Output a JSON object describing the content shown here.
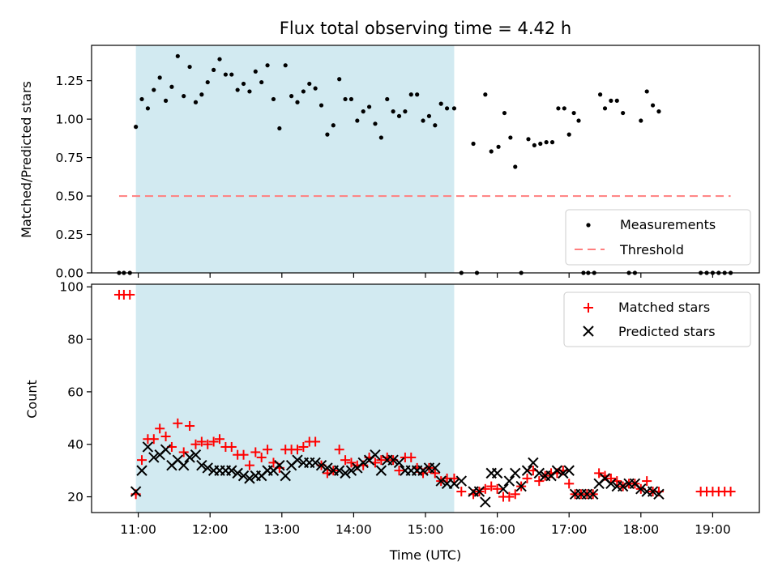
{
  "chart_data": [
    {
      "type": "scatter",
      "title": "Flux total observing time = 4.42 h",
      "xlabel": "",
      "ylabel": "Matched/Predicted stars",
      "xlim": [
        10.35,
        19.65
      ],
      "ylim": [
        0,
        1.48
      ],
      "yticks": [
        0.0,
        0.25,
        0.5,
        0.75,
        1.0,
        1.25
      ],
      "ytick_labels": [
        "0.00",
        "0.25",
        "0.50",
        "0.75",
        "1.00",
        "1.25"
      ],
      "observing_window": {
        "start": "10:58",
        "end": "15:24",
        "color": "#add8e6"
      },
      "legend": {
        "placement": "lower right",
        "entries": [
          "Measurements",
          "Threshold"
        ]
      },
      "threshold": {
        "name": "Threshold",
        "value": 0.5,
        "from": "10:44",
        "to": "19:15",
        "color": "#ff7f7f",
        "style": "dashed"
      },
      "series": [
        {
          "name": "Measurements",
          "color": "#000000",
          "marker": "dot",
          "x": [
            "10:44",
            "10:48",
            "10:53",
            "10:58",
            "11:03",
            "11:08",
            "11:13",
            "11:18",
            "11:23",
            "11:28",
            "11:33",
            "11:38",
            "11:43",
            "11:48",
            "11:53",
            "11:58",
            "12:03",
            "12:08",
            "12:13",
            "12:18",
            "12:23",
            "12:28",
            "12:33",
            "12:38",
            "12:43",
            "12:48",
            "12:53",
            "12:58",
            "13:03",
            "13:08",
            "13:13",
            "13:18",
            "13:23",
            "13:28",
            "13:33",
            "13:38",
            "13:43",
            "13:48",
            "13:53",
            "13:58",
            "14:03",
            "14:08",
            "14:13",
            "14:18",
            "14:23",
            "14:28",
            "14:33",
            "14:38",
            "14:43",
            "14:48",
            "14:53",
            "14:58",
            "15:03",
            "15:08",
            "15:13",
            "15:18",
            "15:24",
            "15:30",
            "15:40",
            "15:43",
            "15:50",
            "15:55",
            "16:01",
            "16:06",
            "16:11",
            "16:15",
            "16:20",
            "16:26",
            "16:31",
            "16:36",
            "16:41",
            "16:46",
            "16:51",
            "16:56",
            "17:00",
            "17:04",
            "17:08",
            "17:12",
            "17:16",
            "17:21",
            "17:26",
            "17:30",
            "17:35",
            "17:40",
            "17:45",
            "17:50",
            "17:55",
            "18:00",
            "18:05",
            "18:10",
            "18:15",
            "18:50",
            "18:55",
            "19:00",
            "19:05",
            "19:10",
            "19:15"
          ],
          "y": [
            0,
            0,
            0,
            0.95,
            1.13,
            1.07,
            1.19,
            1.27,
            1.12,
            1.21,
            1.41,
            1.15,
            1.34,
            1.11,
            1.16,
            1.24,
            1.32,
            1.39,
            1.29,
            1.29,
            1.19,
            1.23,
            1.18,
            1.31,
            1.24,
            1.35,
            1.13,
            0.94,
            1.35,
            1.15,
            1.11,
            1.18,
            1.23,
            1.2,
            1.09,
            0.9,
            0.96,
            1.26,
            1.13,
            1.13,
            0.99,
            1.05,
            1.08,
            0.97,
            0.88,
            1.13,
            1.05,
            1.02,
            1.05,
            1.16,
            1.16,
            0.99,
            1.02,
            0.96,
            1.1,
            1.07,
            1.07,
            0,
            0.84,
            0,
            1.16,
            0.79,
            0.82,
            1.04,
            0.88,
            0.69,
            0,
            0.87,
            0.83,
            0.84,
            0.85,
            0.85,
            1.07,
            1.07,
            0.9,
            1.04,
            0.99,
            0,
            0,
            0,
            1.16,
            1.07,
            1.12,
            1.12,
            1.04,
            0,
            0,
            0.99,
            1.18,
            1.09,
            1.05,
            0,
            0,
            0,
            0,
            0,
            0
          ]
        }
      ]
    },
    {
      "type": "scatter",
      "title": "",
      "xlabel": "Time (UTC)",
      "ylabel": "Count",
      "xlim": [
        10.35,
        19.65
      ],
      "ylim": [
        14,
        101
      ],
      "xtick_labels": [
        "11:00",
        "12:00",
        "13:00",
        "14:00",
        "15:00",
        "16:00",
        "17:00",
        "18:00",
        "19:00"
      ],
      "yticks": [
        20,
        40,
        60,
        80,
        100
      ],
      "ytick_labels": [
        "20",
        "40",
        "60",
        "80",
        "100"
      ],
      "observing_window": {
        "start": "10:58",
        "end": "15:24",
        "color": "#add8e6"
      },
      "legend": {
        "placement": "upper right",
        "entries": [
          "Matched stars",
          "Predicted stars"
        ]
      },
      "series": [
        {
          "name": "Matched stars",
          "color": "#ff0000",
          "marker": "plus",
          "x": [
            "10:44",
            "10:48",
            "10:53",
            "10:58",
            "11:03",
            "11:08",
            "11:13",
            "11:18",
            "11:23",
            "11:28",
            "11:33",
            "11:38",
            "11:43",
            "11:48",
            "11:53",
            "11:58",
            "12:03",
            "12:08",
            "12:13",
            "12:18",
            "12:23",
            "12:28",
            "12:33",
            "12:38",
            "12:43",
            "12:48",
            "12:53",
            "12:58",
            "13:03",
            "13:08",
            "13:13",
            "13:18",
            "13:23",
            "13:28",
            "13:33",
            "13:38",
            "13:43",
            "13:48",
            "13:53",
            "13:58",
            "14:03",
            "14:08",
            "14:13",
            "14:18",
            "14:23",
            "14:28",
            "14:33",
            "14:38",
            "14:43",
            "14:48",
            "14:53",
            "14:58",
            "15:03",
            "15:08",
            "15:13",
            "15:18",
            "15:24",
            "15:30",
            "15:40",
            "15:45",
            "15:50",
            "15:55",
            "16:00",
            "16:05",
            "16:10",
            "16:15",
            "16:20",
            "16:25",
            "16:30",
            "16:35",
            "16:40",
            "16:45",
            "16:50",
            "16:55",
            "17:00",
            "17:05",
            "17:10",
            "17:15",
            "17:20",
            "17:25",
            "17:30",
            "17:35",
            "17:40",
            "17:45",
            "17:50",
            "17:55",
            "18:00",
            "18:05",
            "18:10",
            "18:15",
            "18:50",
            "18:55",
            "19:00",
            "19:05",
            "19:10",
            "19:15"
          ],
          "y": [
            97,
            97,
            97,
            21,
            34,
            42,
            42,
            46,
            43,
            39,
            48,
            37,
            47,
            40,
            41,
            40,
            41,
            42,
            39,
            39,
            36,
            36,
            32,
            37,
            35,
            38,
            33,
            31,
            38,
            38,
            38,
            39,
            41,
            41,
            32,
            29,
            30,
            38,
            34,
            33,
            32,
            32,
            35,
            33,
            34,
            35,
            34,
            30,
            35,
            35,
            31,
            29,
            31,
            29,
            26,
            27,
            27,
            22,
            21,
            22,
            23,
            24,
            23,
            20,
            20,
            21,
            24,
            27,
            30,
            26,
            28,
            29,
            29,
            30,
            25,
            21,
            21,
            21,
            21,
            29,
            28,
            27,
            26,
            24,
            25,
            25,
            23,
            26,
            22,
            22,
            22,
            22,
            22,
            22,
            22,
            22
          ]
        },
        {
          "name": "Predicted stars",
          "color": "#000000",
          "marker": "x",
          "x": [
            "10:58",
            "11:03",
            "11:08",
            "11:13",
            "11:18",
            "11:23",
            "11:28",
            "11:33",
            "11:38",
            "11:43",
            "11:48",
            "11:53",
            "11:58",
            "12:03",
            "12:08",
            "12:13",
            "12:18",
            "12:23",
            "12:28",
            "12:33",
            "12:38",
            "12:43",
            "12:48",
            "12:53",
            "12:58",
            "13:03",
            "13:08",
            "13:13",
            "13:18",
            "13:23",
            "13:28",
            "13:33",
            "13:38",
            "13:43",
            "13:48",
            "13:53",
            "13:58",
            "14:03",
            "14:08",
            "14:13",
            "14:18",
            "14:23",
            "14:28",
            "14:33",
            "14:38",
            "14:43",
            "14:48",
            "14:53",
            "14:58",
            "15:03",
            "15:08",
            "15:13",
            "15:18",
            "15:24",
            "15:30",
            "15:40",
            "15:45",
            "15:50",
            "15:55",
            "16:00",
            "16:05",
            "16:10",
            "16:15",
            "16:20",
            "16:25",
            "16:30",
            "16:35",
            "16:40",
            "16:45",
            "16:50",
            "16:55",
            "17:00",
            "17:05",
            "17:10",
            "17:15",
            "17:20",
            "17:25",
            "17:30",
            "17:35",
            "17:40",
            "17:45",
            "17:50",
            "17:55",
            "18:00",
            "18:05",
            "18:10",
            "18:15"
          ],
          "y": [
            22,
            30,
            39,
            35,
            36,
            38,
            32,
            34,
            32,
            35,
            36,
            32,
            31,
            30,
            30,
            30,
            30,
            29,
            28,
            27,
            28,
            28,
            30,
            30,
            32,
            28,
            32,
            34,
            33,
            33,
            33,
            32,
            31,
            30,
            30,
            29,
            30,
            31,
            33,
            34,
            36,
            30,
            34,
            34,
            33,
            30,
            30,
            30,
            30,
            31,
            31,
            26,
            25,
            25,
            26,
            22,
            22,
            18,
            29,
            29,
            23,
            26,
            29,
            24,
            30,
            33,
            29,
            28,
            28,
            30,
            29,
            30,
            21,
            21,
            21,
            21,
            25,
            27,
            25,
            24,
            24,
            25,
            25,
            23,
            22,
            22,
            21
          ]
        }
      ]
    }
  ]
}
